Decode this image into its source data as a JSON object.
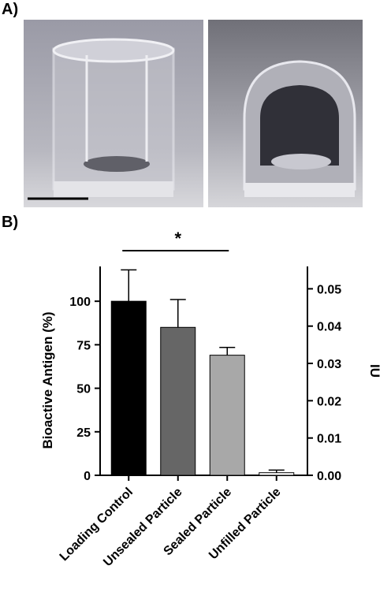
{
  "panel_labels": [
    "A)",
    "B)"
  ],
  "chart_data": {
    "type": "bar",
    "categories": [
      "Loading Control",
      "Unsealed Particle",
      "Sealed Particle",
      "Unfilled Particle"
    ],
    "values": [
      100,
      85,
      69,
      1.5
    ],
    "errors": [
      18,
      16,
      4.5,
      1.5
    ],
    "colors": [
      "#000000",
      "#666666",
      "#a8a8a8",
      "#ffffff"
    ],
    "ylabel": "Bioactive Antigen (%)",
    "y2label": "IU",
    "ylim": [
      0,
      120
    ],
    "yticks": [
      0,
      25,
      50,
      75,
      100
    ],
    "y2lim": [
      0,
      0.056
    ],
    "y2ticks": [
      {
        "value": 0,
        "label": "0.00"
      },
      0.01,
      0.02,
      0.03,
      0.04,
      0.05
    ],
    "significance": {
      "label": "*",
      "from": 0,
      "to": 2
    },
    "grid": false
  }
}
